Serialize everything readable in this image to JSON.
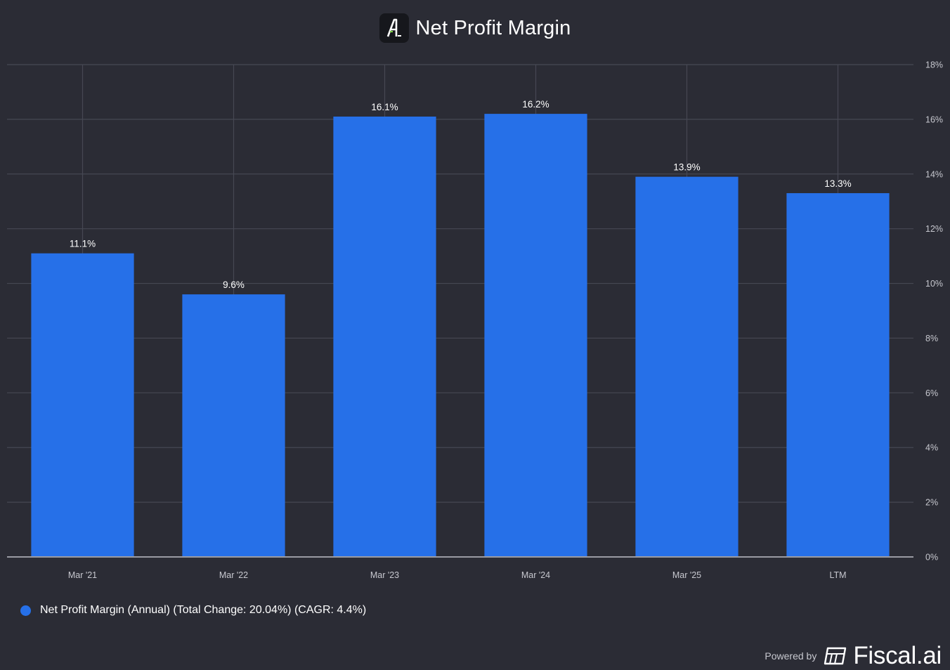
{
  "header": {
    "title": "Net Profit Margin",
    "logo_letter": "A"
  },
  "legend": {
    "label": "Net Profit Margin (Annual) (Total Change: 20.04%) (CAGR: 4.4%)"
  },
  "footer": {
    "powered_by": "Powered by",
    "brand": "Fiscal.ai"
  },
  "colors": {
    "background": "#2b2c35",
    "bar": "#2670e8",
    "grid": "#464853",
    "axis": "#9a9ba3",
    "tick_text": "#c7c8cf"
  },
  "chart_data": {
    "type": "bar",
    "title": "Net Profit Margin",
    "categories": [
      "Mar '21",
      "Mar '22",
      "Mar '23",
      "Mar '24",
      "Mar '25",
      "LTM"
    ],
    "series": [
      {
        "name": "Net Profit Margin (Annual) (Total Change: 20.04%) (CAGR: 4.4%)",
        "values": [
          11.1,
          9.6,
          16.1,
          16.2,
          13.9,
          13.3
        ],
        "labels": [
          "11.1%",
          "9.6%",
          "16.1%",
          "16.2%",
          "13.9%",
          "13.3%"
        ]
      }
    ],
    "ylim": [
      0,
      18
    ],
    "yticks": [
      0,
      2,
      4,
      6,
      8,
      10,
      12,
      14,
      16,
      18
    ],
    "ytick_labels": [
      "0%",
      "2%",
      "4%",
      "6%",
      "8%",
      "10%",
      "12%",
      "14%",
      "16%",
      "18%"
    ],
    "y_axis_side": "right",
    "grid": true,
    "legend_position": "bottom-left",
    "xlabel": "",
    "ylabel": ""
  }
}
